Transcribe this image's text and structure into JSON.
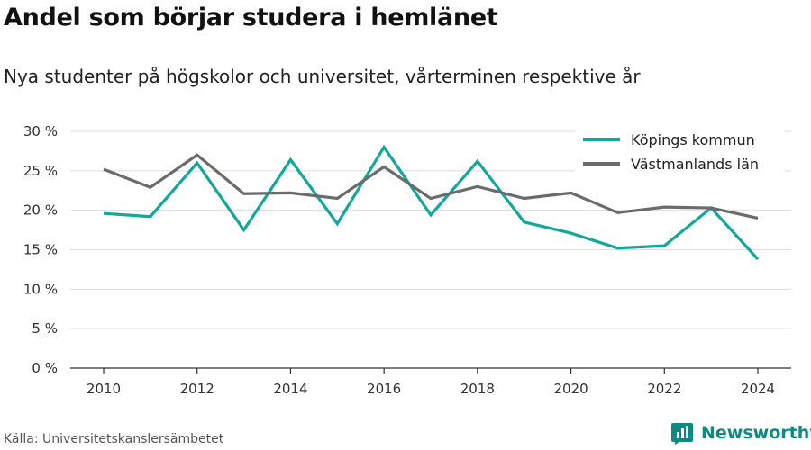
{
  "title": "Andel som börjar studera i hemlänet",
  "subtitle": "Nya studenter på högskolor och universitet, vårterminen respektive år",
  "source": "Källa: Universitetskanslersämbetet",
  "brand": {
    "name": "Newsworthy",
    "icon": "newsworthy-logo-icon",
    "color": "#0f8a83"
  },
  "chart_data": {
    "type": "line",
    "x": [
      2010,
      2011,
      2012,
      2013,
      2014,
      2015,
      2016,
      2017,
      2018,
      2019,
      2020,
      2021,
      2022,
      2023,
      2024
    ],
    "series": [
      {
        "name": "Köpings kommun",
        "color": "#11a89b",
        "values": [
          19.6,
          19.2,
          26.0,
          17.5,
          26.4,
          18.3,
          28.0,
          19.4,
          26.2,
          18.5,
          17.1,
          15.2,
          15.5,
          20.3,
          13.8
        ]
      },
      {
        "name": "Västmanlands län",
        "color": "#6b6b6b",
        "values": [
          25.2,
          22.9,
          27.0,
          22.1,
          22.2,
          21.5,
          25.5,
          21.5,
          23.0,
          21.5,
          22.2,
          19.7,
          20.4,
          20.3,
          19.0
        ]
      }
    ],
    "xticks": [
      2010,
      2012,
      2014,
      2016,
      2018,
      2020,
      2022,
      2024
    ],
    "xtick_labels": [
      "2010",
      "2012",
      "2014",
      "2016",
      "2018",
      "2020",
      "2022",
      "2024"
    ],
    "yticks": [
      0,
      5,
      10,
      15,
      20,
      25,
      30
    ],
    "ytick_labels": [
      "0 %",
      "5 %",
      "10 %",
      "15 %",
      "20 %",
      "25 %",
      "30 %"
    ],
    "ylim": [
      0,
      30
    ],
    "xlim": [
      2010,
      2024
    ],
    "grid": true,
    "legend_position": "top-right"
  }
}
